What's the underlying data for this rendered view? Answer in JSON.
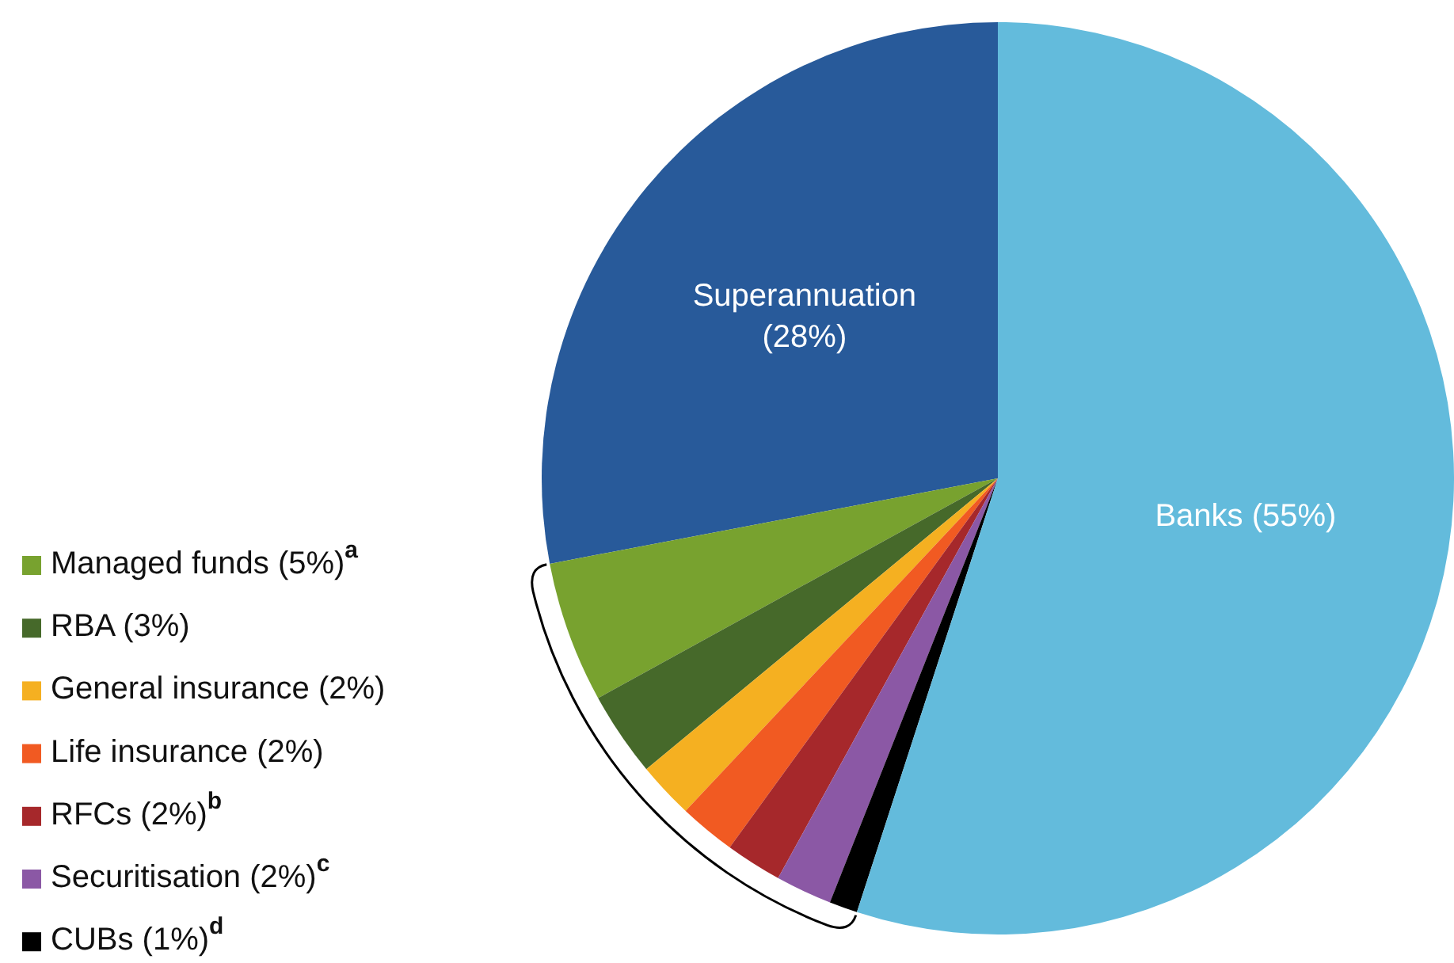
{
  "chart_data": {
    "type": "pie",
    "categories": [
      "Superannuation (28%)",
      "Managed funds (5%)$^{a}$",
      "RBA (3%)",
      "General insurance (2%)",
      "Life insurance (2%)",
      "RFCs (2%)$^{b}$",
      "Securitisation (2%)$^{c}$",
      "CUBs (1%)$^{d}$",
      "Banks (55%)"
    ],
    "values": [
      28,
      5,
      3,
      2,
      2,
      2,
      2,
      1,
      55
    ],
    "colors": [
      "#285a9a",
      "#78a22f",
      "#46692a",
      "#f5b021",
      "#f15a22",
      "#a6282b",
      "#8b58a5",
      "#000000",
      "#63bbdc"
    ],
    "legend": "bottom left"
  }
}
